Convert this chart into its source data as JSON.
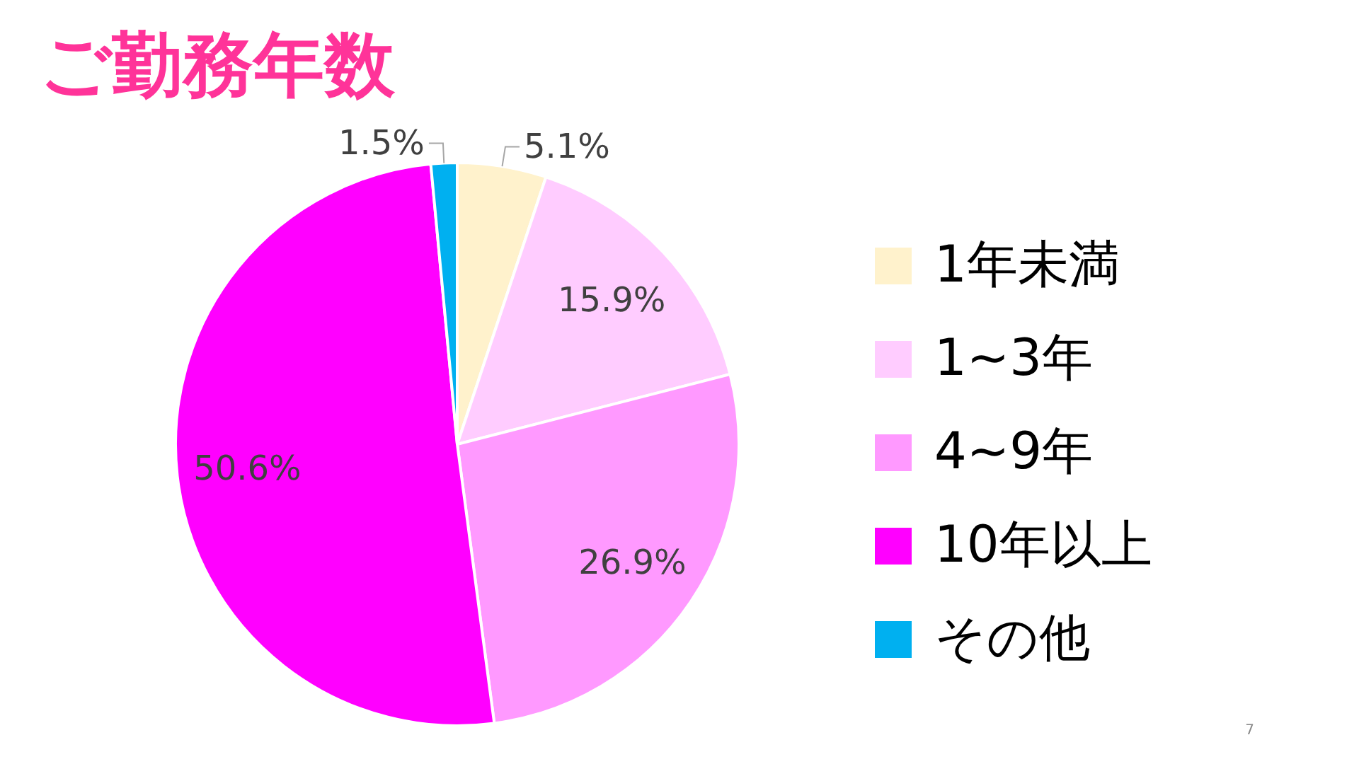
{
  "chart_data": {
    "type": "pie",
    "title": "ご勤務年数",
    "categories": [
      "1年未満",
      "1~3年",
      "4~9年",
      "10年以上",
      "その他"
    ],
    "values": [
      5.1,
      15.9,
      26.9,
      50.6,
      1.5
    ],
    "colors": [
      "#fff2cc",
      "#ffccff",
      "#ff99ff",
      "#ff00ff",
      "#00b0f0"
    ],
    "value_labels": [
      "5.1%",
      "15.9%",
      "26.9%",
      "50.6%",
      "1.5%"
    ],
    "legend": "right",
    "annotations": [
      "7"
    ]
  }
}
